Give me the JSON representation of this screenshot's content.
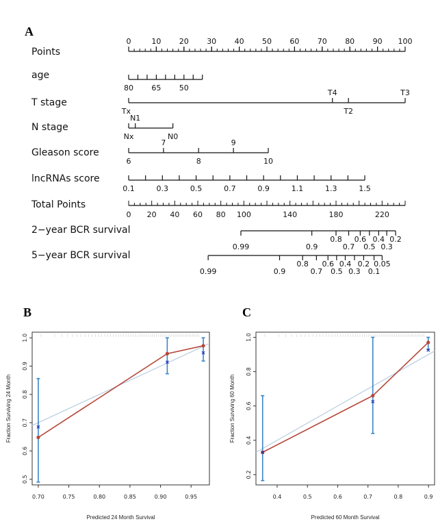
{
  "panels": {
    "a": "A",
    "b": "B",
    "c": "C"
  },
  "chart_data": [
    {
      "type": "nomogram",
      "points_scale": [
        0,
        100
      ],
      "rows": [
        {
          "label": "Points",
          "ticks": [
            {
              "pos": 0,
              "text": "0"
            },
            {
              "pos": 10,
              "text": "10"
            },
            {
              "pos": 20,
              "text": "20"
            },
            {
              "pos": 30,
              "text": "30"
            },
            {
              "pos": 40,
              "text": "40"
            },
            {
              "pos": 50,
              "text": "50"
            },
            {
              "pos": 60,
              "text": "60"
            },
            {
              "pos": 70,
              "text": "70"
            },
            {
              "pos": 80,
              "text": "80"
            },
            {
              "pos": 90,
              "text": "90"
            },
            {
              "pos": 100,
              "text": "100"
            }
          ],
          "minor_step": 2
        },
        {
          "label": "age",
          "ticks": [
            {
              "pos": 0,
              "text": "80",
              "side": "below"
            },
            {
              "pos": 3.33,
              "text": ""
            },
            {
              "pos": 6.67,
              "text": ""
            },
            {
              "pos": 10,
              "text": "65",
              "side": "below"
            },
            {
              "pos": 13.33,
              "text": ""
            },
            {
              "pos": 16.67,
              "text": ""
            },
            {
              "pos": 20,
              "text": "50",
              "side": "below"
            },
            {
              "pos": 23.33,
              "text": ""
            },
            {
              "pos": 26.67,
              "text": ""
            }
          ]
        },
        {
          "label": "T stage",
          "ticks": [
            {
              "pos": 0,
              "text": "Tx",
              "side": "below"
            },
            {
              "pos": 73.7,
              "text": "T4",
              "side": "above"
            },
            {
              "pos": 79.5,
              "text": "T2",
              "side": "below"
            },
            {
              "pos": 100,
              "text": "T3",
              "side": "above"
            }
          ]
        },
        {
          "label": "N stage",
          "ticks": [
            {
              "pos": 0,
              "text": "Nx",
              "side": "below"
            },
            {
              "pos": 2.4,
              "text": "N1",
              "side": "above"
            },
            {
              "pos": 16,
              "text": "N0",
              "side": "below"
            }
          ]
        },
        {
          "label": "Gleason score",
          "ticks": [
            {
              "pos": 0,
              "text": "6",
              "side": "below"
            },
            {
              "pos": 12.6,
              "text": "7",
              "side": "above"
            },
            {
              "pos": 25.3,
              "text": "8",
              "side": "below"
            },
            {
              "pos": 37.9,
              "text": "9",
              "side": "above"
            },
            {
              "pos": 50.5,
              "text": "10",
              "side": "below"
            }
          ]
        },
        {
          "label": "lncRNAs score",
          "ticks": [
            {
              "pos": 0,
              "text": "0.1",
              "side": "below"
            },
            {
              "pos": 6.1,
              "text": ""
            },
            {
              "pos": 12.2,
              "text": "0.3",
              "side": "below"
            },
            {
              "pos": 18.3,
              "text": ""
            },
            {
              "pos": 24.4,
              "text": "0.5",
              "side": "below"
            },
            {
              "pos": 30.5,
              "text": ""
            },
            {
              "pos": 36.6,
              "text": "0.7",
              "side": "below"
            },
            {
              "pos": 42.7,
              "text": ""
            },
            {
              "pos": 48.8,
              "text": "0.9",
              "side": "below"
            },
            {
              "pos": 54.9,
              "text": ""
            },
            {
              "pos": 61,
              "text": "1.1",
              "side": "below"
            },
            {
              "pos": 67.1,
              "text": ""
            },
            {
              "pos": 73.2,
              "text": "1.3",
              "side": "below"
            },
            {
              "pos": 79.3,
              "text": ""
            },
            {
              "pos": 85.4,
              "text": "1.5",
              "side": "below"
            }
          ]
        }
      ],
      "total_points": {
        "label": "Total Points",
        "range": [
          0,
          240
        ],
        "tick_labels": [
          0,
          20,
          40,
          60,
          80,
          100,
          140,
          180,
          220
        ],
        "minor_step": 5
      },
      "survival_rows": [
        {
          "label": "2−year BCR survival",
          "ticks": [
            {
              "tp": 97.4,
              "text": "0.99",
              "row": "lower"
            },
            {
              "tp": 159,
              "text": "0.9",
              "row": "lower"
            },
            {
              "tp": 180,
              "text": "0.8",
              "row": "upper"
            },
            {
              "tp": 191,
              "text": "0.7",
              "row": "lower"
            },
            {
              "tp": 201,
              "text": "0.6",
              "row": "upper"
            },
            {
              "tp": 209,
              "text": "0.5",
              "row": "lower"
            },
            {
              "tp": 217,
              "text": "0.4",
              "row": "upper"
            },
            {
              "tp": 224,
              "text": "0.3",
              "row": "lower"
            },
            {
              "tp": 231.7,
              "text": "0.2",
              "row": "upper"
            }
          ]
        },
        {
          "label": "5−year BCR survival",
          "ticks": [
            {
              "tp": 69,
              "text": "0.99",
              "row": "lower"
            },
            {
              "tp": 131,
              "text": "0.9",
              "row": "lower"
            },
            {
              "tp": 151,
              "text": "0.8",
              "row": "upper"
            },
            {
              "tp": 163,
              "text": "0.7",
              "row": "lower"
            },
            {
              "tp": 173,
              "text": "0.6",
              "row": "upper"
            },
            {
              "tp": 180.5,
              "text": "0.5",
              "row": "lower"
            },
            {
              "tp": 188,
              "text": "0.4",
              "row": "upper"
            },
            {
              "tp": 196,
              "text": "0.3",
              "row": "lower"
            },
            {
              "tp": 204,
              "text": "0.2",
              "row": "upper"
            },
            {
              "tp": 213,
              "text": "0.1",
              "row": "lower"
            },
            {
              "tp": 220,
              "text": "0.05",
              "row": "upper"
            }
          ]
        }
      ]
    },
    {
      "type": "scatter",
      "xlabel": "Predicted  24 Month Survival",
      "ylabel": "Fraction Surviving 24 Month",
      "xlim": [
        0.69,
        0.98
      ],
      "ylim": [
        0.48,
        1.02
      ],
      "xticks": [
        "0.70",
        "0.75",
        "0.80",
        "0.85",
        "0.90",
        "0.95"
      ],
      "yticks": [
        "0.5",
        "0.6",
        "0.7",
        "0.8",
        "0.9",
        "1.0"
      ],
      "ideal_line": [
        [
          0.69,
          0.69
        ],
        [
          0.98,
          0.98
        ]
      ],
      "predicted_x": [
        0.7,
        0.911,
        0.97
      ],
      "observed": [
        0.648,
        0.944,
        0.972
      ],
      "corrected": [
        0.685,
        0.914,
        0.947
      ],
      "ci_low": [
        0.49,
        0.873,
        0.918
      ],
      "ci_high": [
        0.856,
        1.0,
        1.0
      ],
      "colors": {
        "observed": "#b5473a",
        "corrected": "#2233bb",
        "ci": "#3a85c8",
        "ideal": "#b9cde0"
      }
    },
    {
      "type": "scatter",
      "xlabel": "Predicted  60 Month Survival",
      "ylabel": "Fraction Surviving 60 Month",
      "xlim": [
        0.33,
        0.92
      ],
      "ylim": [
        0.14,
        1.03
      ],
      "xticks": [
        "0.4",
        "0.5",
        "0.6",
        "0.7",
        "0.8",
        "0.9"
      ],
      "yticks": [
        "0.2",
        "0.4",
        "0.6",
        "0.8",
        "1.0"
      ],
      "ideal_line": [
        [
          0.33,
          0.33
        ],
        [
          0.92,
          0.92
        ]
      ],
      "predicted_x": [
        0.352,
        0.716,
        0.899
      ],
      "observed": [
        0.33,
        0.66,
        0.97
      ],
      "corrected": [
        0.33,
        0.625,
        0.925
      ],
      "ci_low": [
        0.165,
        0.44,
        0.93
      ],
      "ci_high": [
        0.66,
        1.0,
        1.0
      ],
      "colors": {
        "observed": "#b5473a",
        "corrected": "#2233bb",
        "ci": "#3a85c8",
        "ideal": "#b9cde0"
      }
    }
  ]
}
